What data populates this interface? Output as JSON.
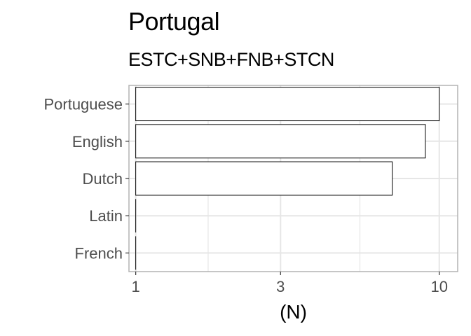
{
  "chart_data": {
    "type": "bar",
    "orientation": "horizontal",
    "title": "Portugal",
    "subtitle": "ESTC+SNB+FNB+STCN",
    "xlabel": "(N)",
    "ylabel": "",
    "x_scale": "log10",
    "xlim": [
      0.95,
      11.5
    ],
    "x_ticks": [
      1,
      3,
      10
    ],
    "x_tick_labels": [
      "1",
      "3",
      "10"
    ],
    "categories": [
      "Portuguese",
      "English",
      "Dutch",
      "Latin",
      "French"
    ],
    "values": [
      10,
      9,
      7,
      1,
      1
    ],
    "bar_fill": "#ffffff",
    "bar_stroke": "#000000",
    "panel_border": "#b3b3b3",
    "grid_color": "#e6e6e6",
    "grid": true,
    "legend": "none"
  }
}
